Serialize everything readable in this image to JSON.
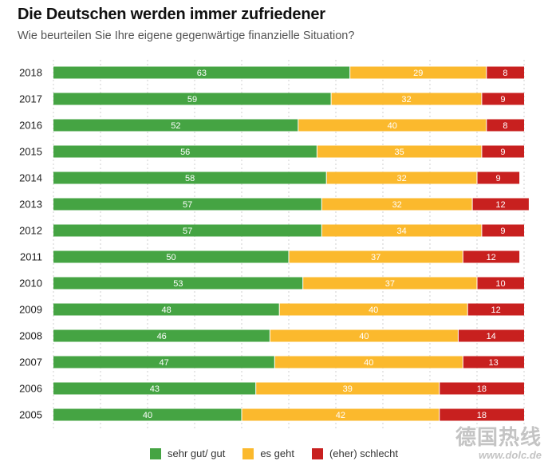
{
  "title": "Die Deutschen werden immer zufriedener",
  "subtitle": "Wie beurteilen Sie Ihre eigene gegenwärtige finanzielle Situation?",
  "chart_data": {
    "type": "bar",
    "orientation": "horizontal",
    "stacked": true,
    "categories": [
      "2018",
      "2017",
      "2016",
      "2015",
      "2014",
      "2013",
      "2012",
      "2011",
      "2010",
      "2009",
      "2008",
      "2007",
      "2006",
      "2005"
    ],
    "series": [
      {
        "name": "sehr gut/ gut",
        "color": "#45a443",
        "values": [
          63,
          59,
          52,
          56,
          58,
          57,
          57,
          50,
          53,
          48,
          46,
          47,
          43,
          40
        ]
      },
      {
        "name": "es geht",
        "color": "#fbb92d",
        "values": [
          29,
          32,
          40,
          35,
          32,
          32,
          34,
          37,
          37,
          40,
          40,
          40,
          39,
          42
        ]
      },
      {
        "name": "(eher) schlecht",
        "color": "#c8201f",
        "values": [
          8,
          9,
          8,
          9,
          9,
          12,
          9,
          12,
          10,
          12,
          14,
          13,
          18,
          18
        ]
      }
    ],
    "xlim": [
      0,
      100
    ],
    "legend_position": "bottom"
  },
  "legend": {
    "items": [
      {
        "label": "sehr gut/ gut",
        "color": "#45a443"
      },
      {
        "label": "es geht",
        "color": "#fbb92d"
      },
      {
        "label": "(eher) schlecht",
        "color": "#c8201f"
      }
    ]
  },
  "watermark": {
    "main": "德国热线",
    "sub": "www.dolc.de"
  }
}
